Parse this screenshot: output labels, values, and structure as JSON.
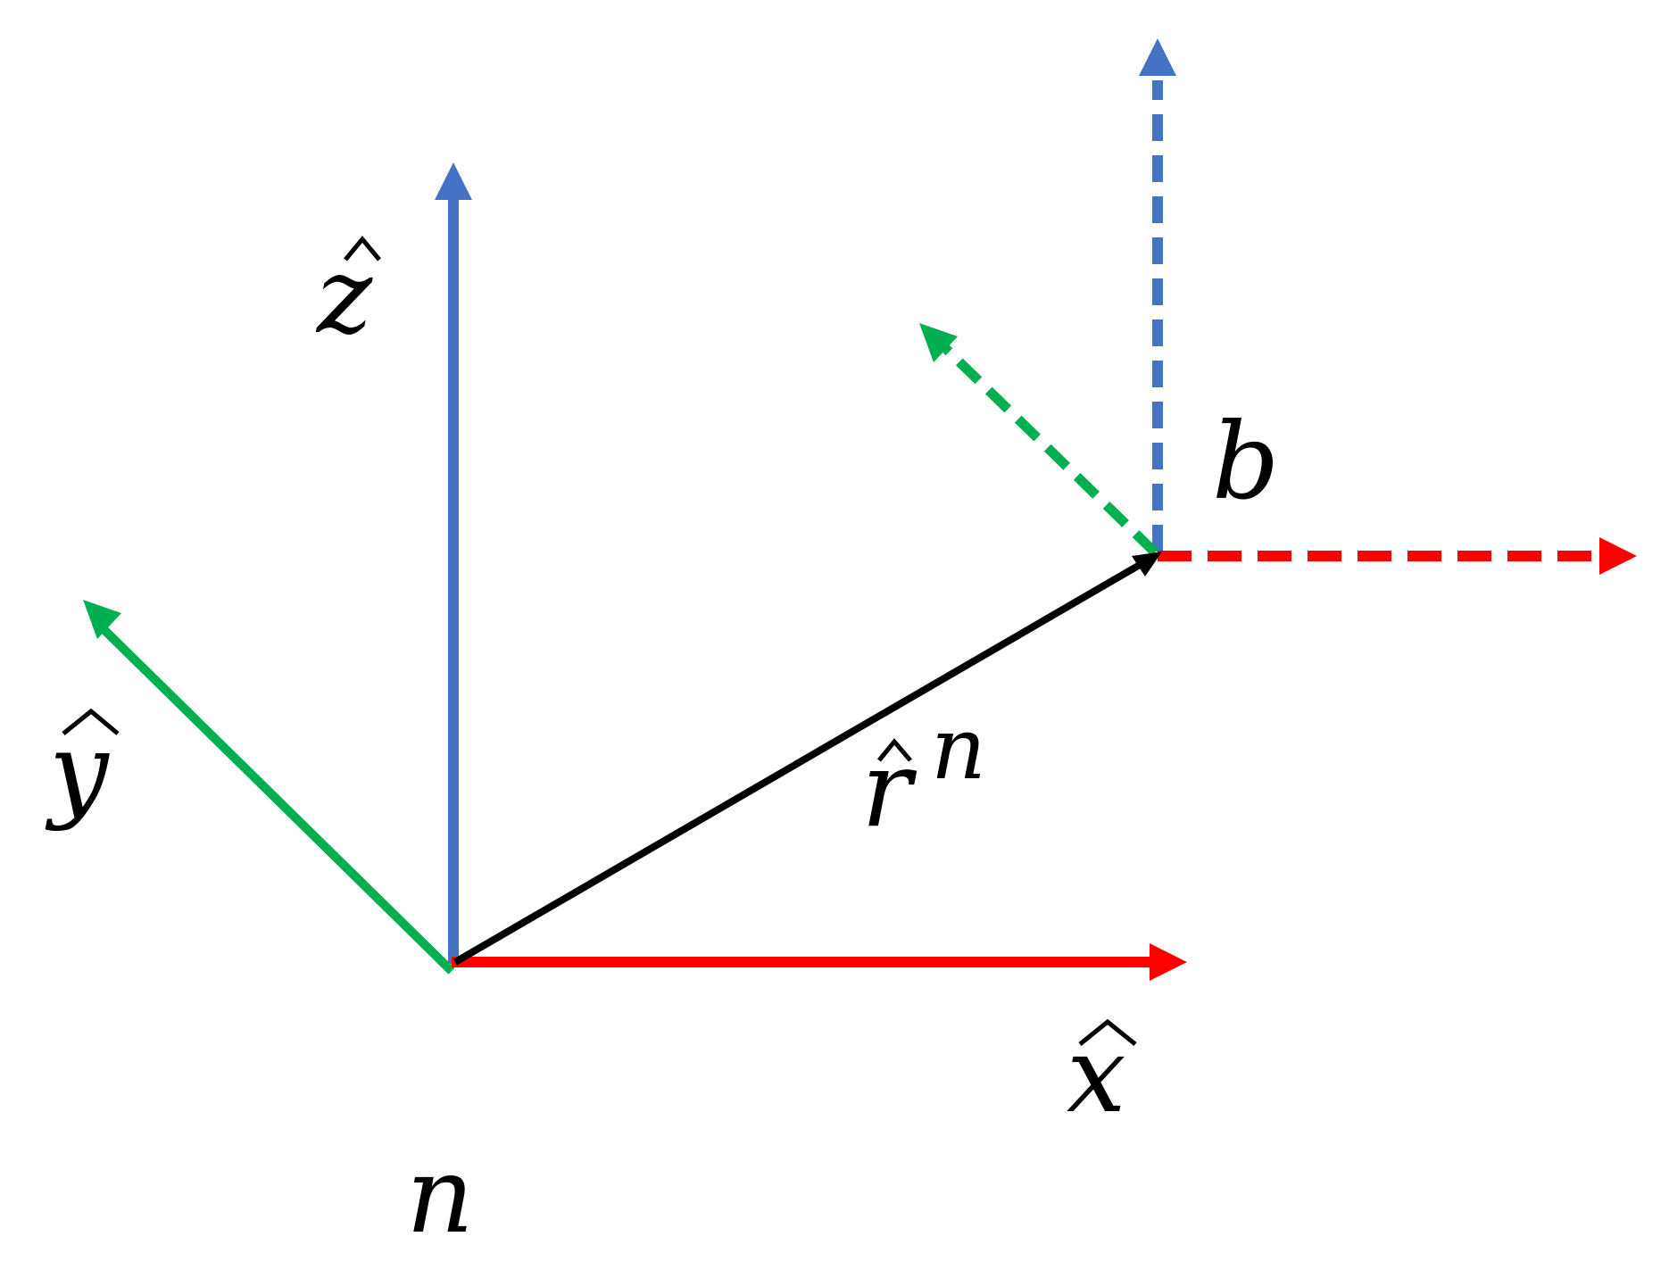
{
  "colors": {
    "x_axis": "#FF0000",
    "y_axis": "#00B050",
    "z_axis": "#4472C4",
    "position_vector": "#000000",
    "background": "#FFFFFF"
  },
  "frames": {
    "n": {
      "label": "n",
      "axes": {
        "x": {
          "label": "x",
          "hat": true,
          "style": "solid"
        },
        "y": {
          "label": "y",
          "hat": true,
          "style": "solid"
        },
        "z": {
          "label": "z",
          "hat": true,
          "style": "solid"
        }
      }
    },
    "b": {
      "label": "b",
      "axes": {
        "x": {
          "style": "dashed"
        },
        "y": {
          "style": "dashed"
        },
        "z": {
          "style": "dashed"
        }
      }
    }
  },
  "position_vector": {
    "symbol": "r",
    "hat": true,
    "superscript": "n"
  }
}
